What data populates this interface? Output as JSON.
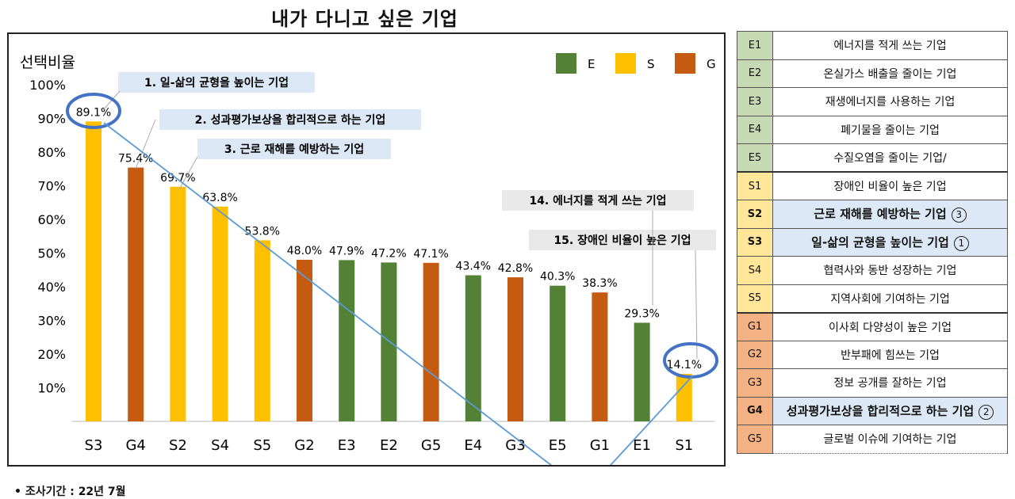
{
  "title": "내가 다니고 싶은 기업",
  "footnote": "• 조사기간 : 22년 7월",
  "colors": {
    "E": "#538135",
    "S": "#ffc000",
    "G": "#c55a11"
  },
  "chart_data": {
    "type": "bar",
    "ylabel": "선택비율",
    "ylim": [
      0,
      100
    ],
    "yticks": [
      "10%",
      "20%",
      "30%",
      "40%",
      "50%",
      "60%",
      "70%",
      "80%",
      "90%",
      "100%"
    ],
    "categories": [
      "S3",
      "G4",
      "S2",
      "S4",
      "S5",
      "G2",
      "E3",
      "E2",
      "G5",
      "E4",
      "G3",
      "E5",
      "G1",
      "E1",
      "S1"
    ],
    "values": [
      89.1,
      75.4,
      69.7,
      63.8,
      53.8,
      48.0,
      47.9,
      47.2,
      47.1,
      43.4,
      42.8,
      40.3,
      38.3,
      29.3,
      14.1
    ],
    "value_labels": [
      "89.1%",
      "75.4%",
      "69.7%",
      "63.8%",
      "53.8%",
      "48.0%",
      "47.9%",
      "47.2%",
      "47.1%",
      "43.4%",
      "42.8%",
      "40.3%",
      "38.3%",
      "29.3%",
      "14.1%"
    ],
    "groups": [
      "S",
      "G",
      "S",
      "S",
      "S",
      "G",
      "E",
      "E",
      "G",
      "E",
      "G",
      "E",
      "G",
      "E",
      "S"
    ],
    "legend": [
      "E",
      "S",
      "G"
    ],
    "legend_position": "top-right",
    "grid": false,
    "annotations": [
      "1. 일-삶의 균형을 높이는 기업",
      "2. 성과평가보상을 합리적으로 하는 기업",
      "3. 근로 재해를 예방하는 기업",
      "14. 에너지를 적게 쓰는 기업",
      "15. 장애인 비율이 높은 기업"
    ],
    "trend_arrow": true
  },
  "legend_table": [
    {
      "code": "E1",
      "desc": "에너지를 적게 쓰는 기업",
      "group": "E"
    },
    {
      "code": "E2",
      "desc": "온실가스 배출을 줄이는 기업",
      "group": "E"
    },
    {
      "code": "E3",
      "desc": "재생에너지를 사용하는 기업",
      "group": "E"
    },
    {
      "code": "E4",
      "desc": "폐기물을 줄이는 기업",
      "group": "E"
    },
    {
      "code": "E5",
      "desc": "수질오염을 줄이는 기업/",
      "group": "E"
    },
    {
      "code": "S1",
      "desc": "장애인 비율이 높은 기업",
      "group": "S"
    },
    {
      "code": "S2",
      "desc": "근로 재해를 예방하는 기업",
      "group": "S",
      "rank": "③"
    },
    {
      "code": "S3",
      "desc": "일-삶의 균형을 높이는 기업",
      "group": "S",
      "rank": "①"
    },
    {
      "code": "S4",
      "desc": "협력사와 동반 성장하는 기업",
      "group": "S"
    },
    {
      "code": "S5",
      "desc": "지역사회에 기여하는 기업",
      "group": "S"
    },
    {
      "code": "G1",
      "desc": "이사회 다양성이 높은 기업",
      "group": "G"
    },
    {
      "code": "G2",
      "desc": "반부패에 힘쓰는 기업",
      "group": "G"
    },
    {
      "code": "G3",
      "desc": "정보 공개를 잘하는 기업",
      "group": "G"
    },
    {
      "code": "G4",
      "desc": "성과평가보상을 합리적으로 하는 기업",
      "group": "G",
      "rank": "②"
    },
    {
      "code": "G5",
      "desc": "글로벌 이슈에 기여하는 기업",
      "group": "G"
    }
  ],
  "table_code_bg": {
    "E": "#c6d9b3",
    "S": "#ffe699",
    "G": "#f4b183"
  }
}
